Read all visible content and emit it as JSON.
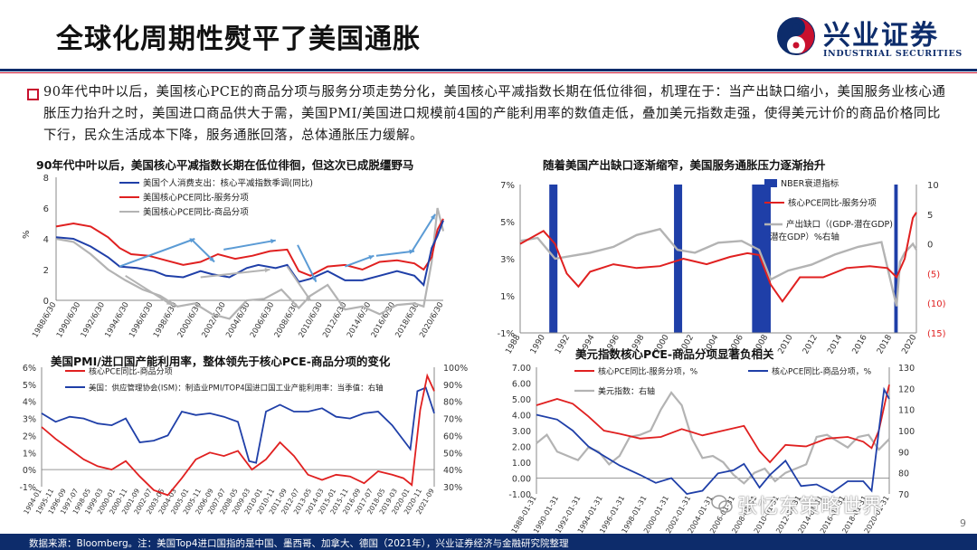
{
  "slide": {
    "title": "全球化周期性熨平了美国通胀",
    "summary": "90年代中叶以后，美国核心PCE的商品分项与服务分项走势分化，美国核心平减指数长期在低位徘徊，机理在于：当产出缺口缩小，美国服务业核心通胀压力抬升之时，美国进口商品供大于需，美国PMI/美国进口规模前4国的产能利用率的数值走低，叠加美元指数走强，使得美元计价的商品价格同比下行，民众生活成本下降，服务通胀回落，总体通胀压力缓解。",
    "footer": "数据来源：Bloomberg。注：美国Top4进口国指的是中国、墨西哥、加拿大、德国（2021年），兴业证券经济与金融研究院整理",
    "page_number": "9",
    "watermark": "张忆东策略世界"
  },
  "logo": {
    "cn": "兴业证券",
    "en": "INDUSTRIAL SECURITIES",
    "colors": {
      "navy": "#0d2c6b",
      "red": "#c8102e"
    }
  },
  "colors": {
    "blue": "#1f3fa8",
    "red": "#e02020",
    "gray": "#b3b3b3",
    "lightblue": "#5b9bd5",
    "navy": "#0d2c6b"
  },
  "chart_data": [
    {
      "type": "line",
      "title": "90年代中叶以后，美国核心平减指数长期在低位徘徊，但这次已成脱缰野马",
      "ylabel": "%",
      "ylim": [
        0,
        8
      ],
      "yticks": [
        "8",
        "6",
        "4",
        "2",
        "0"
      ],
      "xticks": [
        "1988/6/30",
        "1990/6/30",
        "1992/6/30",
        "1994/6/30",
        "1996/6/30",
        "1998/6/30",
        "2000/6/30",
        "2002/6/30",
        "2004/6/30",
        "2006/6/30",
        "2008/6/30",
        "2010/6/30",
        "2012/6/30",
        "2014/6/30",
        "2016/6/30",
        "2018/6/30",
        "2020/6/30"
      ],
      "x_start": 1988.5,
      "x_end": 2022.0,
      "series": [
        {
          "name": "美国个人消费支出：核心平减指数季调(同比)",
          "color": "#1f3fa8",
          "x": [
            1988.5,
            1990,
            1991.5,
            1993,
            1994,
            1995.5,
            1997,
            1998,
            1999.5,
            2001,
            2002,
            2003.5,
            2005,
            2006,
            2007.5,
            2008.5,
            2009.5,
            2010.5,
            2012,
            2013.5,
            2015,
            2016.5,
            2018,
            2019.5,
            2020.3,
            2021,
            2021.5,
            2022
          ],
          "y": [
            4.1,
            4.0,
            3.5,
            2.8,
            2.2,
            2.1,
            1.9,
            1.6,
            1.5,
            1.9,
            1.7,
            1.5,
            2.1,
            2.3,
            2.1,
            2.3,
            1.2,
            1.4,
            1.9,
            1.3,
            1.3,
            1.6,
            1.9,
            1.6,
            1.0,
            3.4,
            4.2,
            5.2
          ]
        },
        {
          "name": "美国核心PCE同比-服务分项",
          "color": "#e02020",
          "x": [
            1988.5,
            1990,
            1991.5,
            1993,
            1994,
            1995,
            1996.5,
            1998,
            1999.5,
            2001,
            2002.5,
            2004,
            2005.5,
            2007,
            2008.5,
            2009.5,
            2010.5,
            2012,
            2013.5,
            2015,
            2016.5,
            2018,
            2019.5,
            2020.3,
            2021,
            2021.5,
            2022
          ],
          "y": [
            4.8,
            5.0,
            4.8,
            4.1,
            3.4,
            3.0,
            2.9,
            2.6,
            2.3,
            2.5,
            3.0,
            2.7,
            2.9,
            3.2,
            3.3,
            1.9,
            1.6,
            2.2,
            2.3,
            2.0,
            2.5,
            2.6,
            2.4,
            2.0,
            2.8,
            4.6,
            5.3
          ]
        },
        {
          "name": "美国核心PCE同比-商品分项",
          "color": "#b3b3b3",
          "x": [
            1988.5,
            1990,
            1991.5,
            1993,
            1994.5,
            1996,
            1997.5,
            1999,
            2000.5,
            2002,
            2003.5,
            2005,
            2006.5,
            2008,
            2009.5,
            2010.5,
            2012,
            2013.5,
            2015,
            2016.5,
            2018,
            2019.5,
            2020.3,
            2021,
            2021.5,
            2022
          ],
          "y": [
            4.0,
            3.8,
            3.0,
            2.0,
            1.3,
            0.7,
            0.3,
            -0.4,
            -0.2,
            -0.9,
            -1.2,
            0.0,
            0.1,
            0.7,
            -0.5,
            0.3,
            1.0,
            -0.6,
            -0.4,
            -0.9,
            -0.3,
            -0.2,
            -0.4,
            2.5,
            6.0,
            4.5
          ]
        }
      ]
    },
    {
      "type": "line",
      "title": "随着美国产出缺口逐渐缩窄，美国服务通胀压力逐渐抬升",
      "yticks_left": [
        "7%",
        "5%",
        "3%",
        "1%",
        "-1%"
      ],
      "yticks_right": [
        "10",
        "5",
        "0",
        "(5)",
        "(10)",
        "(15)"
      ],
      "ylim_left": [
        -1,
        7
      ],
      "ylim_right": [
        -15,
        10
      ],
      "xticks": [
        "1988",
        "1990",
        "1992",
        "1994",
        "1996",
        "1998",
        "2000",
        "2002",
        "2004",
        "2006",
        "2008",
        "2010",
        "2012",
        "2014",
        "2016",
        "2018",
        "2020"
      ],
      "x_start": 1988,
      "x_end": 2022,
      "recessions": [
        [
          1990.5,
          1991.2
        ],
        [
          2001.2,
          2001.9
        ],
        [
          2007.9,
          2009.5
        ],
        [
          2020.1,
          2020.4
        ]
      ],
      "series": [
        {
          "name": "NBER衰退指标",
          "color": "#1f3fa8"
        },
        {
          "name": "核心PCE同比-服务分项",
          "color": "#e02020",
          "x": [
            1988,
            1990,
            1991,
            1992,
            1993,
            1994,
            1996,
            1998,
            2000,
            2002,
            2004,
            2006,
            2007.5,
            2008.5,
            2009.5,
            2010.5,
            2012,
            2014,
            2016,
            2018,
            2019.5,
            2020.3,
            2021,
            2021.7,
            2022
          ],
          "y": [
            3.8,
            4.5,
            3.8,
            2.2,
            1.5,
            2.3,
            2.7,
            2.5,
            2.6,
            3.0,
            2.7,
            3.1,
            3.3,
            3.2,
            1.6,
            0.7,
            2.0,
            2.0,
            2.5,
            2.6,
            2.5,
            2.0,
            3.0,
            5.2,
            5.5
          ]
        },
        {
          "name": "产出缺口（(GDP-潜在GDP)潜在GDP）%右轴",
          "color": "#b3b3b3",
          "x": [
            1988,
            1989.5,
            1991,
            1992.5,
            1994,
            1996,
            1998,
            2000,
            2001.5,
            2003,
            2005,
            2007,
            2008.5,
            2009.5,
            2011,
            2013,
            2015,
            2017,
            2019,
            2020.3,
            2020.6,
            2021,
            2021.7,
            2022
          ],
          "y": [
            0.5,
            1.0,
            -2.5,
            -2.0,
            -1.5,
            -0.5,
            1.5,
            2.5,
            -1.0,
            -1.5,
            0.2,
            0.5,
            -1.0,
            -6.0,
            -4.5,
            -3.5,
            -1.8,
            -0.5,
            0.3,
            -10.5,
            -3.0,
            -1.5,
            0.0,
            -1.0
          ]
        }
      ]
    },
    {
      "type": "line",
      "title": "美国PMI/进口国产能利用率，整体领先于核心PCE-商品分项的变化",
      "yticks_left": [
        "6%",
        "5%",
        "4%",
        "3%",
        "2%",
        "1%",
        "0%",
        "-1%"
      ],
      "yticks_right": [
        "100%",
        "90%",
        "80%",
        "70%",
        "60%",
        "50%",
        "40%",
        "30%"
      ],
      "ylim_left": [
        -1,
        6
      ],
      "ylim_right": [
        30,
        100
      ],
      "xticks": [
        "1994-01",
        "1995-11",
        "1996-09",
        "1997-07",
        "1998-05",
        "1999-03",
        "2000-01",
        "2000-11",
        "2001-09",
        "2002-07",
        "2003-05",
        "2004-03",
        "2005-01",
        "2005-11",
        "2006-09",
        "2007-07",
        "2008-05",
        "2009-03",
        "2010-01",
        "2010-11",
        "2011-09",
        "2012-07",
        "2013-05",
        "2014-03",
        "2015-01",
        "2015-11",
        "2016-09",
        "2017-07",
        "2018-05",
        "2019-03",
        "2020-01",
        "2020-11",
        "2021-09"
      ],
      "x_start": 1994.0,
      "x_end": 2022.0,
      "series": [
        {
          "name": "核心PCE同比-商品分项",
          "color": "#e02020",
          "x": [
            1994,
            1995,
            1996,
            1997,
            1998,
            1999,
            2000,
            2001,
            2002,
            2003,
            2004,
            2005,
            2006,
            2007,
            2008,
            2009,
            2010,
            2011,
            2012,
            2013,
            2014,
            2015,
            2016,
            2017,
            2018,
            2019,
            2019.8,
            2020.4,
            2021,
            2021.5,
            2022
          ],
          "y": [
            2.5,
            1.8,
            1.2,
            0.6,
            0.2,
            0.0,
            0.5,
            -0.4,
            -1.2,
            -1.5,
            -0.5,
            0.6,
            1.0,
            0.8,
            1.1,
            0.0,
            0.6,
            1.6,
            0.8,
            -0.3,
            -0.6,
            -0.3,
            -0.4,
            -0.8,
            -0.1,
            -0.3,
            -0.5,
            -0.9,
            3.5,
            5.5,
            4.6
          ]
        },
        {
          "name": "美国：供应管理协会(ISM)：制造业PMI/TOP4国进口国工业产能利用率：当季值：右轴",
          "color": "#1f3fa8",
          "x": [
            1994,
            1995,
            1996,
            1997,
            1998,
            1999,
            2000,
            2001,
            2002,
            2003,
            2004,
            2005,
            2006,
            2007,
            2008,
            2008.8,
            2009.3,
            2010,
            2011,
            2012,
            2013,
            2014,
            2015,
            2016,
            2017,
            2018,
            2019,
            2020.3,
            2020.8,
            2021.4,
            2022
          ],
          "y": [
            73,
            68,
            71,
            70,
            67,
            66,
            70,
            56,
            57,
            60,
            74,
            72,
            73,
            71,
            68,
            45,
            44,
            74,
            78,
            74,
            74,
            76,
            71,
            70,
            73,
            74,
            66,
            52,
            86,
            88,
            73
          ]
        }
      ]
    },
    {
      "type": "line",
      "title": "美元指数核心PCE-商品分项显著负相关",
      "yticks_left": [
        "7.00",
        "6.00",
        "5.00",
        "4.00",
        "3.00",
        "2.00",
        "1.00",
        "0.00",
        "-1.00"
      ],
      "yticks_right": [
        "130",
        "120",
        "110",
        "100",
        "90",
        "80",
        "70"
      ],
      "ylim_left": [
        -1,
        7
      ],
      "ylim_right": [
        70,
        130
      ],
      "xticks": [
        "1988-01-31",
        "1990-01-31",
        "1992-01-31",
        "1994-01-31",
        "1996-01-31",
        "1998-01-31",
        "2000-01-31",
        "2002-01-31",
        "2004-01-31",
        "2006-01-31",
        "2008-01-31",
        "2010-01-31",
        "2012-01-31",
        "2014-01-31",
        "2016-01-31",
        "2018-01-31",
        "2020-01-31"
      ],
      "x_start": 1988.0,
      "x_end": 2022.0,
      "series": [
        {
          "name": "核心PCE同比-服务分项，%",
          "color": "#e02020",
          "x": [
            1988,
            1990,
            1991.5,
            1993,
            1994.5,
            1996,
            1998,
            2000,
            2002,
            2004,
            2006,
            2008,
            2009.5,
            2010.5,
            2012,
            2014,
            2016,
            2018,
            2019.5,
            2020.3,
            2021,
            2021.7,
            2022
          ],
          "y": [
            4.6,
            5.0,
            4.7,
            3.9,
            3.0,
            2.8,
            2.5,
            2.6,
            3.1,
            2.7,
            3.0,
            3.3,
            1.7,
            1.0,
            2.1,
            2.0,
            2.5,
            2.6,
            2.3,
            1.9,
            3.0,
            5.1,
            5.9
          ]
        },
        {
          "name": "核心PCE同比-商品分项，%",
          "color": "#1f3fa8",
          "x": [
            1988,
            1990,
            1991.5,
            1993,
            1994.5,
            1996,
            1998,
            1999.5,
            2001,
            2002.5,
            2004,
            2005.5,
            2007,
            2008,
            2009.5,
            2010.5,
            2012,
            2013.5,
            2015,
            2016.5,
            2018,
            2019.5,
            2020.3,
            2021,
            2021.5,
            2022
          ],
          "y": [
            4.0,
            3.7,
            3.0,
            2.0,
            1.4,
            0.8,
            0.2,
            -0.3,
            0.0,
            -1.0,
            -0.8,
            0.3,
            0.5,
            0.9,
            -0.6,
            0.2,
            1.1,
            -0.5,
            -0.4,
            -0.9,
            -0.2,
            -0.2,
            -0.8,
            3.0,
            5.6,
            5.0
          ]
        },
        {
          "name": "美元指数：右轴",
          "color": "#b3b3b3",
          "x": [
            1988,
            1989,
            1990,
            1991,
            1992,
            1993,
            1994,
            1995,
            1996,
            1997,
            1998,
            1999,
            2000,
            2001,
            2002,
            2003,
            2004,
            2005,
            2006,
            2007,
            2008,
            2009,
            2010,
            2011,
            2012,
            2013,
            2014,
            2015,
            2016,
            2017,
            2018,
            2019,
            2020,
            2021,
            2022
          ],
          "y": [
            94,
            98,
            90,
            88,
            86,
            92,
            90,
            84,
            88,
            97,
            98,
            100,
            110,
            118,
            112,
            96,
            87,
            88,
            85,
            79,
            75,
            80,
            82,
            76,
            80,
            82,
            84,
            97,
            98,
            95,
            92,
            97,
            98,
            91,
            96
          ]
        }
      ]
    }
  ]
}
